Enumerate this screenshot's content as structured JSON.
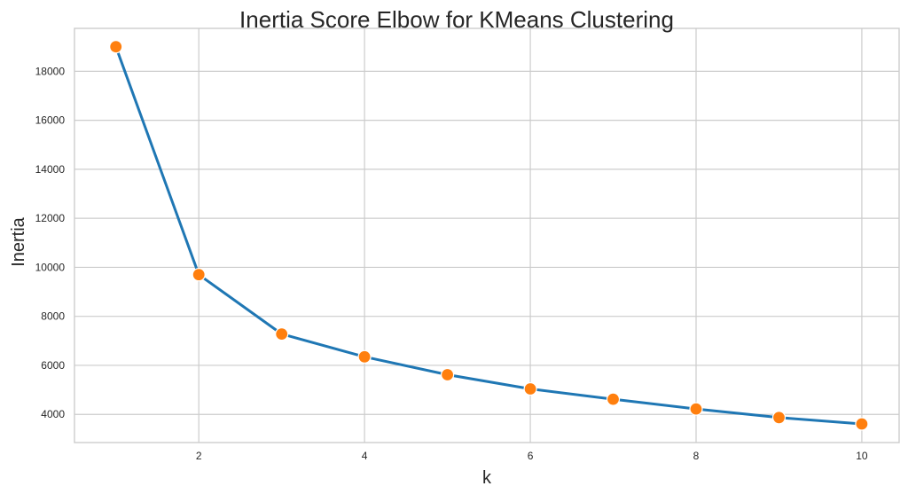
{
  "chart_data": {
    "type": "line",
    "title": "Inertia Score Elbow for KMeans Clustering",
    "xlabel": "k",
    "ylabel": "Inertia",
    "x": [
      1,
      2,
      3,
      4,
      5,
      6,
      7,
      8,
      9,
      10
    ],
    "series": [
      {
        "values": [
          19000,
          9700,
          7280,
          6350,
          5620,
          5040,
          4620,
          4220,
          3870,
          3610
        ],
        "line_color": "#1f77b4",
        "marker_color": "#ff7f0e"
      }
    ],
    "xlim": [
      0.5,
      10.45
    ],
    "ylim": [
      2850,
      19750
    ],
    "xticks": [
      2,
      4,
      6,
      8,
      10
    ],
    "yticks": [
      4000,
      6000,
      8000,
      10000,
      12000,
      14000,
      16000,
      18000
    ],
    "grid": true,
    "legend": "none"
  }
}
